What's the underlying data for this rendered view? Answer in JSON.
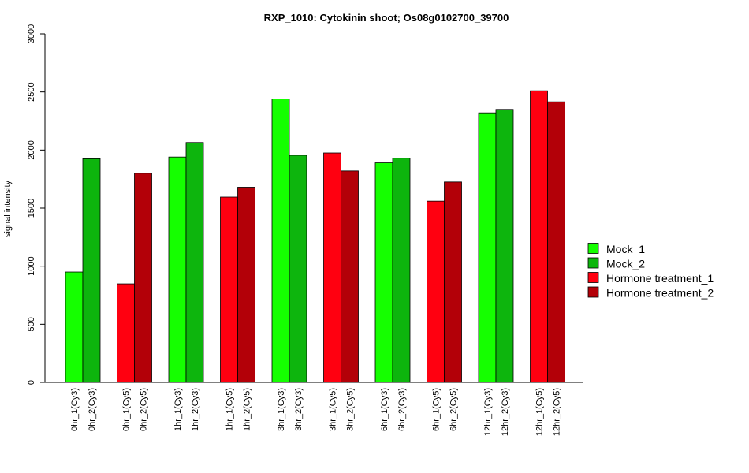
{
  "chart_data": {
    "type": "bar",
    "title": "RXP_1010: Cytokinin shoot; Os08g0102700_39700",
    "xlabel": "",
    "ylabel": "signal intensity",
    "ylim": [
      0,
      3000
    ],
    "yticks": [
      0,
      500,
      1000,
      1500,
      2000,
      2500,
      3000
    ],
    "legend_position": "right",
    "series_colors": {
      "Mock_1": "#15ff00",
      "Mock_2": "#0db50d",
      "Hormone treatment_1": "#ff0010",
      "Hormone treatment_2": "#b30008"
    },
    "legend": [
      "Mock_1",
      "Mock_2",
      "Hormone treatment_1",
      "Hormone treatment_2"
    ],
    "bars": [
      {
        "label": "0hr_1(Cy3)",
        "value": 950,
        "series": "Mock_1"
      },
      {
        "label": "0hr_2(Cy3)",
        "value": 1925,
        "series": "Mock_2"
      },
      {
        "label": "0hr_1(Cy5)",
        "value": 848,
        "series": "Hormone treatment_1"
      },
      {
        "label": "0hr_2(Cy5)",
        "value": 1800,
        "series": "Hormone treatment_2"
      },
      {
        "label": "1hr_1(Cy3)",
        "value": 1940,
        "series": "Mock_1"
      },
      {
        "label": "1hr_2(Cy3)",
        "value": 2065,
        "series": "Mock_2"
      },
      {
        "label": "1hr_1(Cy5)",
        "value": 1595,
        "series": "Hormone treatment_1"
      },
      {
        "label": "1hr_2(Cy5)",
        "value": 1680,
        "series": "Hormone treatment_2"
      },
      {
        "label": "3hr_1(Cy3)",
        "value": 2440,
        "series": "Mock_1"
      },
      {
        "label": "3hr_2(Cy3)",
        "value": 1955,
        "series": "Mock_2"
      },
      {
        "label": "3hr_1(Cy5)",
        "value": 1975,
        "series": "Hormone treatment_1"
      },
      {
        "label": "3hr_2(Cy5)",
        "value": 1820,
        "series": "Hormone treatment_2"
      },
      {
        "label": "6hr_1(Cy3)",
        "value": 1890,
        "series": "Mock_1"
      },
      {
        "label": "6hr_2(Cy3)",
        "value": 1930,
        "series": "Mock_2"
      },
      {
        "label": "6hr_1(Cy5)",
        "value": 1560,
        "series": "Hormone treatment_1"
      },
      {
        "label": "6hr_2(Cy5)",
        "value": 1725,
        "series": "Hormone treatment_2"
      },
      {
        "label": "12hr_1(Cy3)",
        "value": 2320,
        "series": "Mock_1"
      },
      {
        "label": "12hr_2(Cy3)",
        "value": 2350,
        "series": "Mock_2"
      },
      {
        "label": "12hr_1(Cy5)",
        "value": 2510,
        "series": "Hormone treatment_1"
      },
      {
        "label": "12hr_2(Cy5)",
        "value": 2415,
        "series": "Hormone treatment_2"
      }
    ]
  }
}
